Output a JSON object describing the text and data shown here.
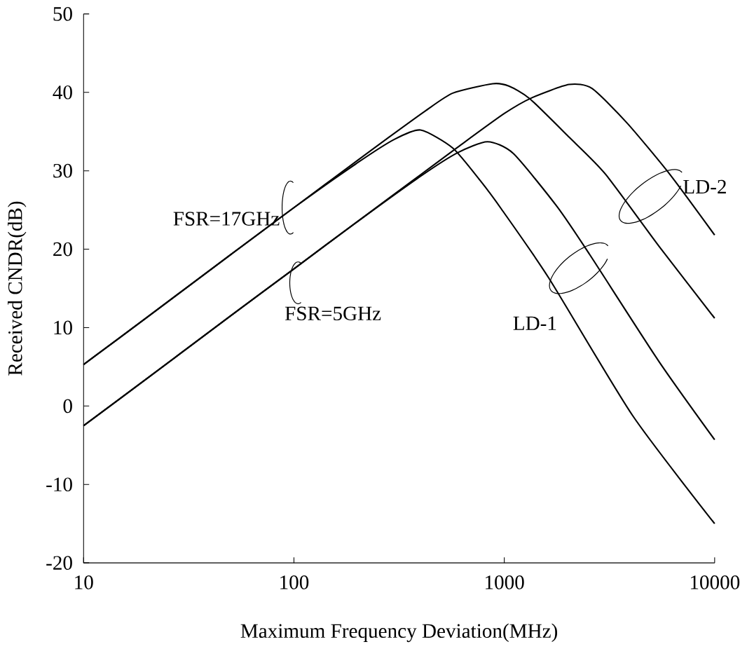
{
  "chart_data": {
    "type": "line",
    "xlabel": "Maximum Frequency Deviation(MHz)",
    "ylabel": "Received CNDR(dB)",
    "log": "x",
    "xlim": [
      10,
      10000
    ],
    "xticks": [
      10,
      100,
      1000,
      10000
    ],
    "ylim": [
      -20,
      50
    ],
    "yticks": [
      -20,
      -10,
      0,
      10,
      20,
      30,
      40,
      50
    ],
    "grid": false,
    "marker": "none",
    "line_style": "solid",
    "annotations": [
      "FSR=17GHz",
      "FSR=5GHz",
      "LD-1",
      "LD-2"
    ],
    "series": [
      {
        "color": "#000000",
        "x": [
          10,
          20,
          50,
          100,
          200,
          300,
          400,
          569,
          771,
          970,
          1630,
          4070,
          10000
        ],
        "values": [
          5.3,
          11.3,
          19.3,
          25.3,
          31.0,
          34.0,
          35.2,
          32.9,
          28.7,
          25.1,
          16.3,
          -1.2,
          -15
        ]
      },
      {
        "color": "#000000",
        "x": [
          10,
          20,
          50,
          100,
          200,
          400,
          600,
          832,
          1104,
          1786,
          2535,
          5430,
          10000
        ],
        "values": [
          -2.5,
          3.5,
          11.5,
          17.5,
          23.5,
          29.3,
          32.3,
          33.7,
          32.2,
          25.4,
          19.4,
          5.7,
          -4.3
        ]
      },
      {
        "color": "#000000",
        "x": [
          10,
          20,
          50,
          100,
          200,
          287,
          420,
          569,
          880,
          1050,
          1320,
          2030,
          3020,
          5430,
          10000
        ],
        "values": [
          5.3,
          11.3,
          19.3,
          25.3,
          31.3,
          34.4,
          37.6,
          39.9,
          41.1,
          40.8,
          39.2,
          34.3,
          29.6,
          20.4,
          11.2
        ]
      },
      {
        "color": "#000000",
        "x": [
          10,
          20,
          50,
          100,
          200,
          400,
          600,
          1000,
          1350,
          2030,
          2610,
          3830,
          6100,
          10000
        ],
        "values": [
          -2.5,
          3.5,
          11.5,
          17.5,
          23.5,
          29.5,
          33.0,
          37.3,
          39.3,
          41.0,
          40.5,
          36.1,
          29.6,
          21.8
        ]
      }
    ]
  }
}
